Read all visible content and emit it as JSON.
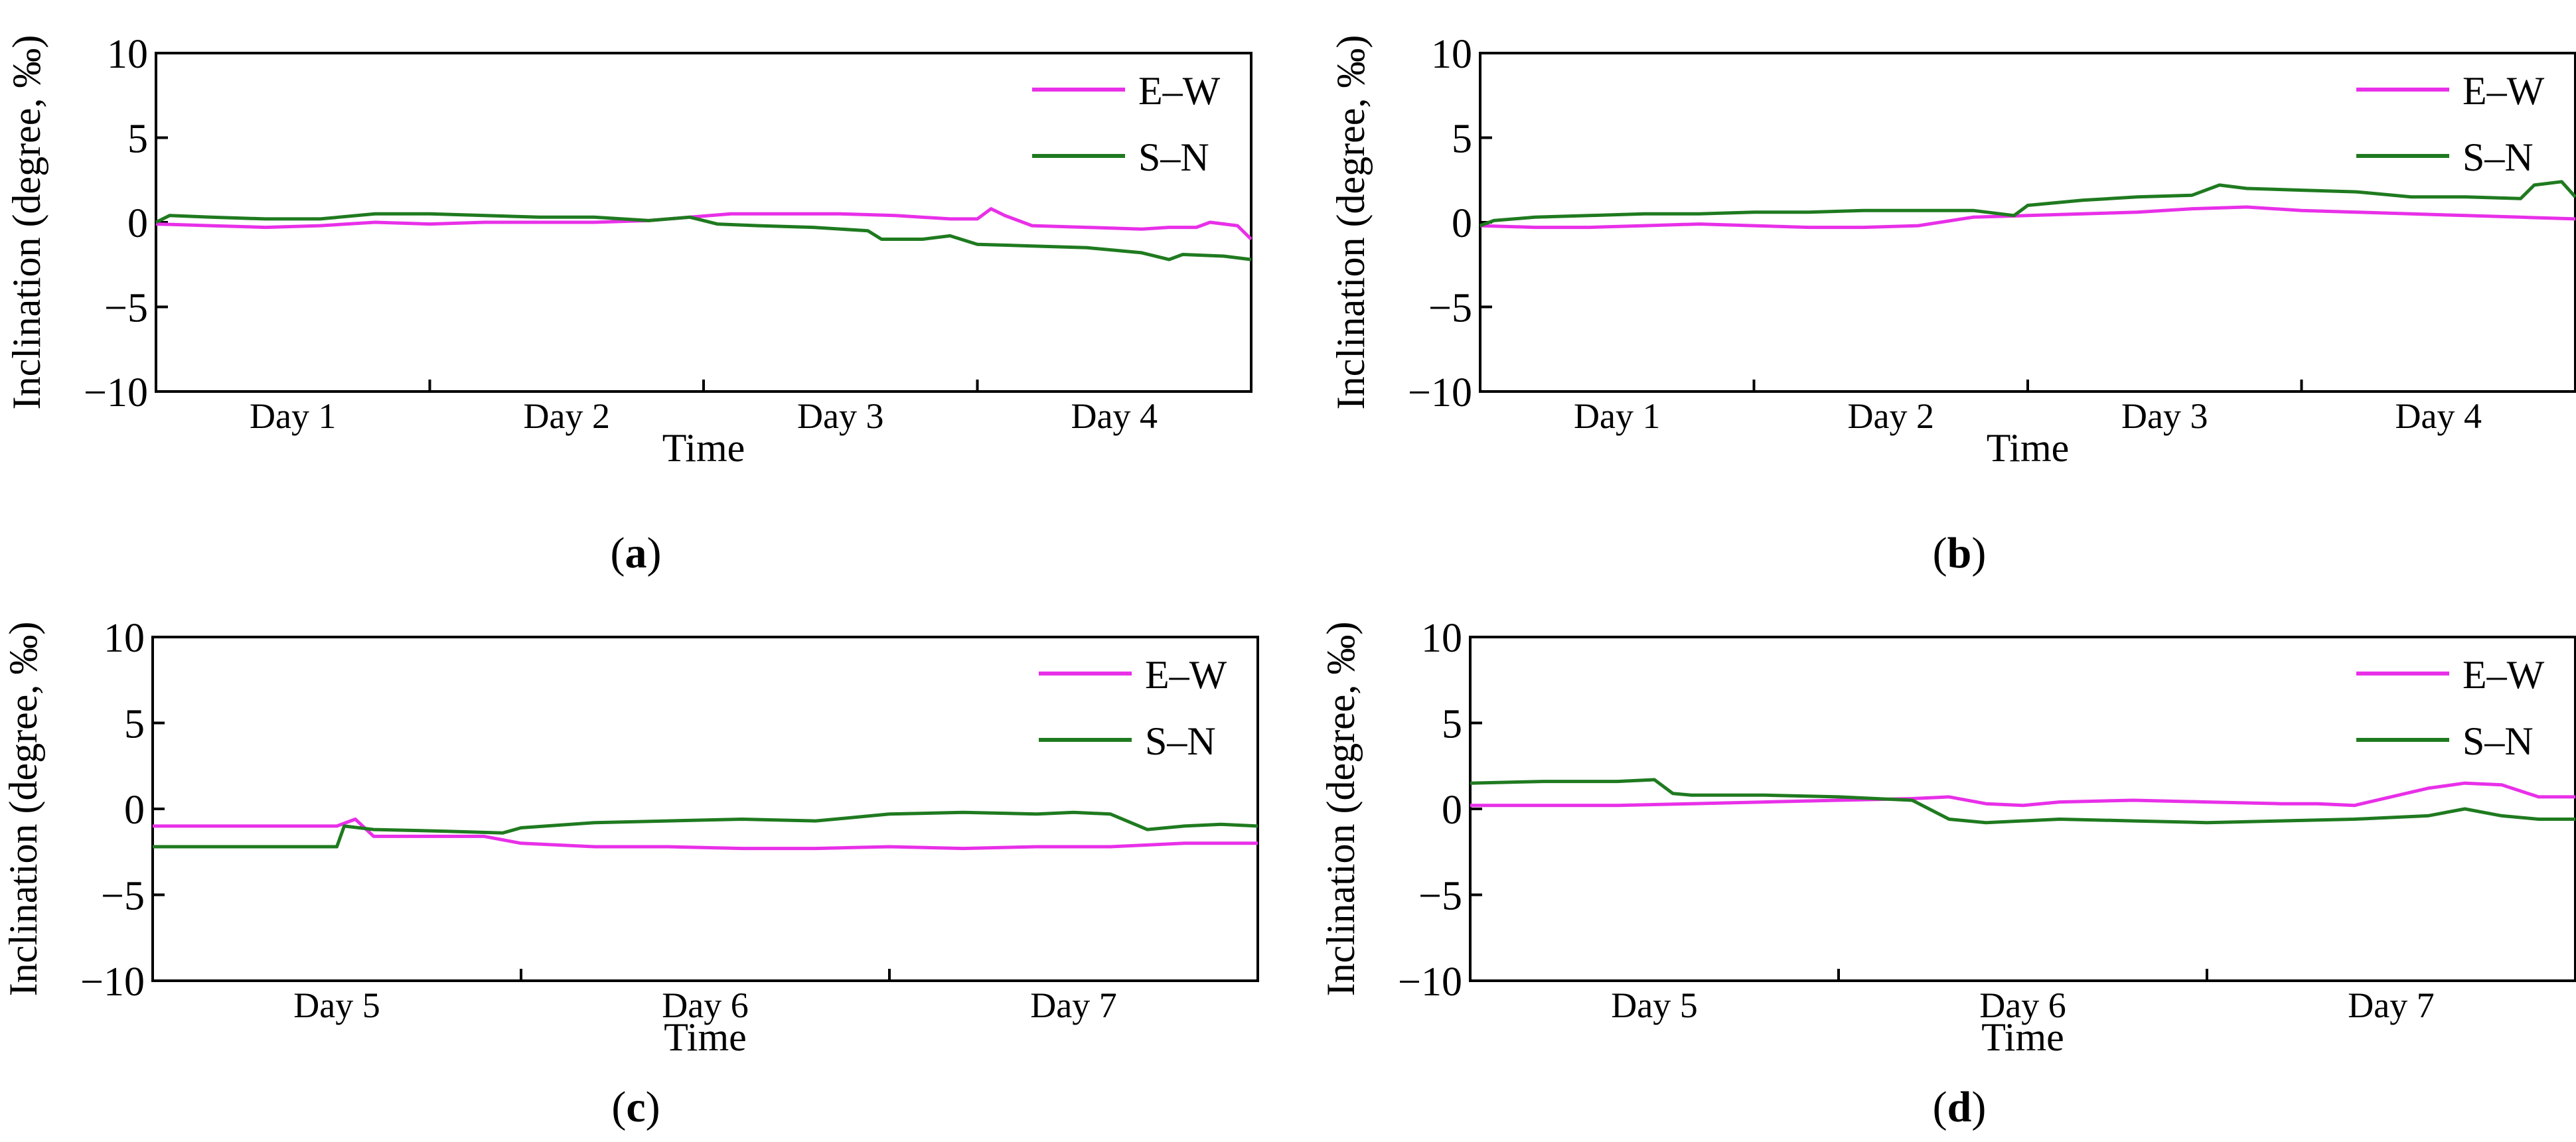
{
  "figure": {
    "legend_colors": {
      "E–W": "#e830e8",
      "S–N": "#1f7a1f"
    }
  },
  "chart_data": [
    {
      "id": "a",
      "type": "line",
      "panel_label": "a",
      "xlabel": "Time",
      "ylabel": "Inclination (degree, ‰)",
      "ylim": [
        -10,
        10
      ],
      "yticks": [
        10,
        5,
        0,
        -5,
        -10
      ],
      "xlim": [
        0,
        4
      ],
      "day_labels": [
        "Day 1",
        "Day 2",
        "Day 3",
        "Day 4"
      ],
      "legend": [
        "E–W",
        "S–N"
      ],
      "series": [
        {
          "name": "E–W",
          "color": "#e830e8",
          "x": [
            0,
            0.2,
            0.4,
            0.6,
            0.8,
            1.0,
            1.2,
            1.4,
            1.6,
            1.8,
            1.95,
            2.1,
            2.3,
            2.5,
            2.7,
            2.9,
            3.0,
            3.05,
            3.1,
            3.2,
            3.4,
            3.6,
            3.7,
            3.8,
            3.85,
            3.95,
            4.0
          ],
          "values": [
            -0.1,
            -0.2,
            -0.3,
            -0.2,
            0.0,
            -0.1,
            0.0,
            0.0,
            0.0,
            0.1,
            0.3,
            0.5,
            0.5,
            0.5,
            0.4,
            0.2,
            0.2,
            0.8,
            0.4,
            -0.2,
            -0.3,
            -0.4,
            -0.3,
            -0.3,
            0.0,
            -0.2,
            -1.0
          ]
        },
        {
          "name": "S–N",
          "color": "#1f7a1f",
          "x": [
            0,
            0.05,
            0.2,
            0.4,
            0.6,
            0.8,
            1.0,
            1.2,
            1.4,
            1.6,
            1.8,
            1.95,
            2.05,
            2.2,
            2.4,
            2.6,
            2.65,
            2.8,
            2.9,
            3.0,
            3.2,
            3.4,
            3.6,
            3.7,
            3.75,
            3.9,
            4.0
          ],
          "values": [
            0.0,
            0.4,
            0.3,
            0.2,
            0.2,
            0.5,
            0.5,
            0.4,
            0.3,
            0.3,
            0.1,
            0.3,
            -0.1,
            -0.2,
            -0.3,
            -0.5,
            -1.0,
            -1.0,
            -0.8,
            -1.3,
            -1.4,
            -1.5,
            -1.8,
            -2.2,
            -1.9,
            -2.0,
            -2.2
          ]
        }
      ]
    },
    {
      "id": "b",
      "type": "line",
      "panel_label": "b",
      "xlabel": "Time",
      "ylabel": "Inclination (degree, ‰)",
      "ylim": [
        -10,
        10
      ],
      "yticks": [
        10,
        5,
        0,
        -5,
        -10
      ],
      "xlim": [
        0,
        4
      ],
      "day_labels": [
        "Day 1",
        "Day 2",
        "Day 3",
        "Day 4"
      ],
      "legend": [
        "E–W",
        "S–N"
      ],
      "series": [
        {
          "name": "E–W",
          "color": "#e830e8",
          "x": [
            0,
            0.2,
            0.4,
            0.6,
            0.8,
            1.0,
            1.2,
            1.4,
            1.6,
            1.8,
            2.0,
            2.2,
            2.4,
            2.6,
            2.8,
            3.0,
            3.2,
            3.4,
            3.6,
            3.8,
            4.0
          ],
          "values": [
            -0.2,
            -0.3,
            -0.3,
            -0.2,
            -0.1,
            -0.2,
            -0.3,
            -0.3,
            -0.2,
            0.3,
            0.4,
            0.5,
            0.6,
            0.8,
            0.9,
            0.7,
            0.6,
            0.5,
            0.4,
            0.3,
            0.2
          ]
        },
        {
          "name": "S–N",
          "color": "#1f7a1f",
          "x": [
            0,
            0.05,
            0.2,
            0.4,
            0.6,
            0.8,
            1.0,
            1.2,
            1.4,
            1.6,
            1.8,
            1.95,
            2.0,
            2.2,
            2.4,
            2.6,
            2.7,
            2.8,
            3.0,
            3.2,
            3.4,
            3.6,
            3.8,
            3.85,
            3.95,
            4.0
          ],
          "values": [
            -0.2,
            0.1,
            0.3,
            0.4,
            0.5,
            0.5,
            0.6,
            0.6,
            0.7,
            0.7,
            0.7,
            0.4,
            1.0,
            1.3,
            1.5,
            1.6,
            2.2,
            2.0,
            1.9,
            1.8,
            1.5,
            1.5,
            1.4,
            2.2,
            2.4,
            1.5
          ]
        }
      ]
    },
    {
      "id": "c",
      "type": "line",
      "panel_label": "c",
      "xlabel": "Time",
      "ylabel": "Inclination (degree, ‰)",
      "ylim": [
        -10,
        10
      ],
      "yticks": [
        10,
        5,
        0,
        -5,
        -10
      ],
      "xlim": [
        0,
        3
      ],
      "day_labels": [
        "Day 5",
        "Day 6",
        "Day 7"
      ],
      "legend": [
        "E–W",
        "S–N"
      ],
      "series": [
        {
          "name": "E–W",
          "color": "#e830e8",
          "x": [
            0,
            0.2,
            0.4,
            0.5,
            0.55,
            0.6,
            0.8,
            0.9,
            1.0,
            1.2,
            1.4,
            1.6,
            1.8,
            2.0,
            2.2,
            2.4,
            2.6,
            2.8,
            3.0
          ],
          "values": [
            -1.0,
            -1.0,
            -1.0,
            -1.0,
            -0.6,
            -1.6,
            -1.6,
            -1.6,
            -2.0,
            -2.2,
            -2.2,
            -2.3,
            -2.3,
            -2.2,
            -2.3,
            -2.2,
            -2.2,
            -2.0,
            -2.0
          ]
        },
        {
          "name": "S–N",
          "color": "#1f7a1f",
          "x": [
            0,
            0.2,
            0.4,
            0.5,
            0.52,
            0.6,
            0.8,
            0.95,
            1.0,
            1.2,
            1.4,
            1.6,
            1.8,
            1.9,
            2.0,
            2.2,
            2.4,
            2.5,
            2.6,
            2.7,
            2.8,
            2.9,
            3.0
          ],
          "values": [
            -2.2,
            -2.2,
            -2.2,
            -2.2,
            -1.0,
            -1.2,
            -1.3,
            -1.4,
            -1.1,
            -0.8,
            -0.7,
            -0.6,
            -0.7,
            -0.5,
            -0.3,
            -0.2,
            -0.3,
            -0.2,
            -0.3,
            -1.2,
            -1.0,
            -0.9,
            -1.0
          ]
        }
      ]
    },
    {
      "id": "d",
      "type": "line",
      "panel_label": "d",
      "xlabel": "Time",
      "ylabel": "Inclination (degree, ‰)",
      "ylim": [
        -10,
        10
      ],
      "yticks": [
        10,
        5,
        0,
        -5,
        -10
      ],
      "xlim": [
        0,
        3
      ],
      "day_labels": [
        "Day 5",
        "Day 6",
        "Day 7"
      ],
      "legend": [
        "E–W",
        "S–N"
      ],
      "series": [
        {
          "name": "E–W",
          "color": "#e830e8",
          "x": [
            0,
            0.2,
            0.4,
            0.6,
            0.8,
            1.0,
            1.2,
            1.3,
            1.4,
            1.5,
            1.6,
            1.8,
            2.0,
            2.2,
            2.3,
            2.4,
            2.6,
            2.7,
            2.8,
            2.9,
            3.0
          ],
          "values": [
            0.2,
            0.2,
            0.2,
            0.3,
            0.4,
            0.5,
            0.6,
            0.7,
            0.3,
            0.2,
            0.4,
            0.5,
            0.4,
            0.3,
            0.3,
            0.2,
            1.2,
            1.5,
            1.4,
            0.7,
            0.7
          ]
        },
        {
          "name": "S–N",
          "color": "#1f7a1f",
          "x": [
            0,
            0.2,
            0.4,
            0.5,
            0.55,
            0.6,
            0.8,
            1.0,
            1.2,
            1.3,
            1.4,
            1.6,
            1.8,
            2.0,
            2.2,
            2.4,
            2.6,
            2.7,
            2.8,
            2.9,
            3.0
          ],
          "values": [
            1.5,
            1.6,
            1.6,
            1.7,
            0.9,
            0.8,
            0.8,
            0.7,
            0.5,
            -0.6,
            -0.8,
            -0.6,
            -0.7,
            -0.8,
            -0.7,
            -0.6,
            -0.4,
            0.0,
            -0.4,
            -0.6,
            -0.6
          ]
        }
      ]
    }
  ]
}
